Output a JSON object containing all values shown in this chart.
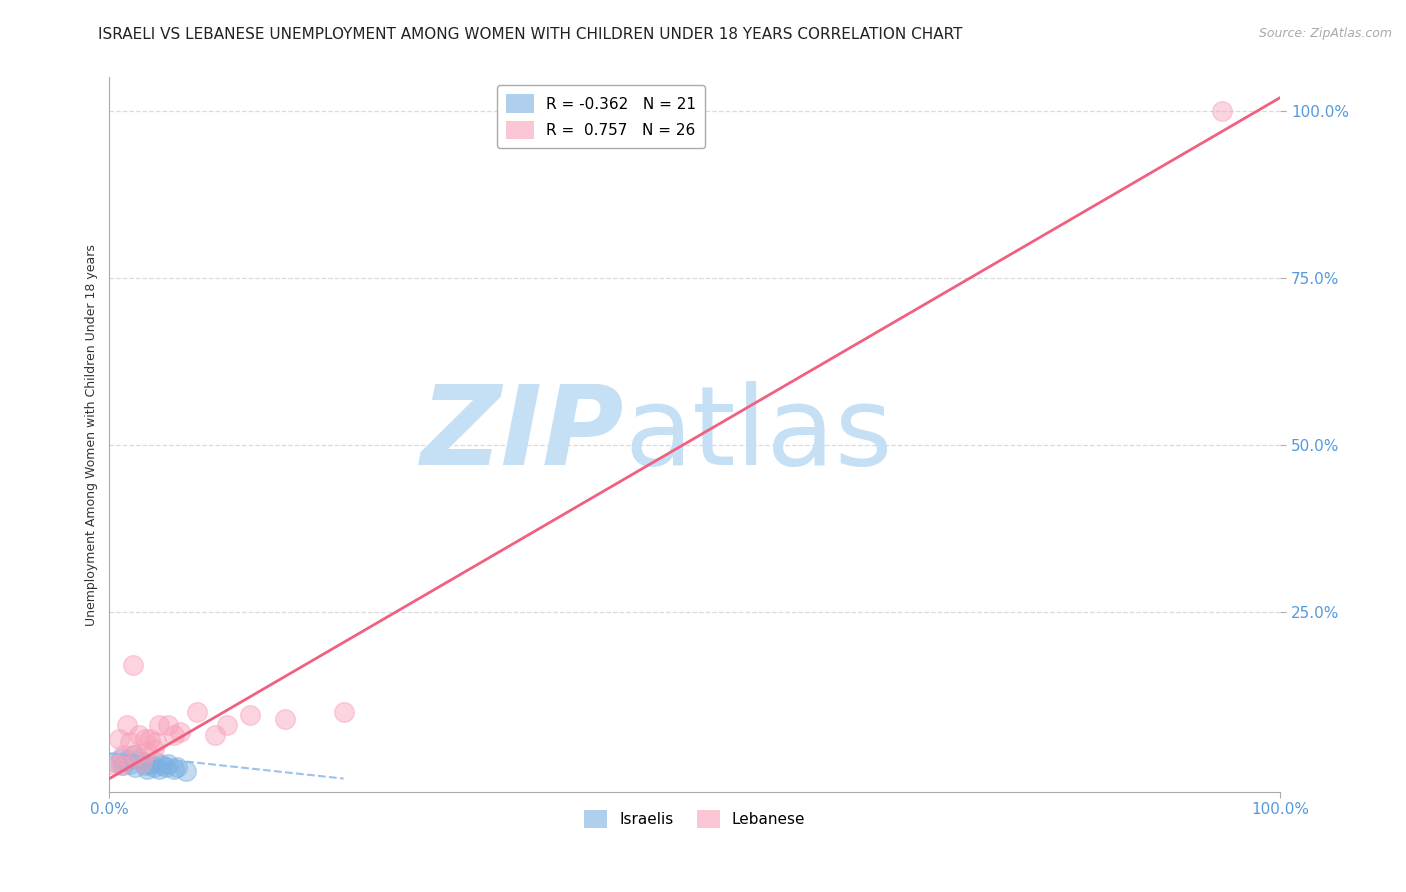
{
  "title": "ISRAELI VS LEBANESE UNEMPLOYMENT AMONG WOMEN WITH CHILDREN UNDER 18 YEARS CORRELATION CHART",
  "source": "Source: ZipAtlas.com",
  "ylabel": "Unemployment Among Women with Children Under 18 years",
  "xlim": [
    0,
    1
  ],
  "ylim": [
    -0.02,
    1.05
  ],
  "xticks": [
    0.0,
    1.0
  ],
  "yticks": [
    0.25,
    0.5,
    0.75,
    1.0
  ],
  "xticklabels": [
    "0.0%",
    "100.0%"
  ],
  "yticklabels": [
    "25.0%",
    "50.0%",
    "75.0%",
    "100.0%"
  ],
  "israeli_R": -0.362,
  "israeli_N": 21,
  "lebanese_R": 0.757,
  "lebanese_N": 26,
  "israeli_color": "#7ab0e0",
  "lebanese_color": "#f8a0b8",
  "israeli_trend_color": "#8ab8e8",
  "lebanese_trend_color": "#f06080",
  "background_color": "#ffffff",
  "grid_color": "#d8d8d8",
  "watermark_zip": "ZIP",
  "watermark_atlas": "atlas",
  "watermark_color": "#c5dff5",
  "israeli_points": [
    [
      0.005,
      0.025
    ],
    [
      0.01,
      0.03
    ],
    [
      0.012,
      0.02
    ],
    [
      0.015,
      0.028
    ],
    [
      0.018,
      0.022
    ],
    [
      0.02,
      0.035
    ],
    [
      0.022,
      0.018
    ],
    [
      0.025,
      0.03
    ],
    [
      0.028,
      0.025
    ],
    [
      0.03,
      0.02
    ],
    [
      0.032,
      0.015
    ],
    [
      0.035,
      0.022
    ],
    [
      0.038,
      0.018
    ],
    [
      0.04,
      0.025
    ],
    [
      0.042,
      0.015
    ],
    [
      0.045,
      0.02
    ],
    [
      0.048,
      0.018
    ],
    [
      0.05,
      0.022
    ],
    [
      0.055,
      0.015
    ],
    [
      0.058,
      0.018
    ],
    [
      0.065,
      0.012
    ]
  ],
  "lebanese_points": [
    [
      0.005,
      0.02
    ],
    [
      0.008,
      0.06
    ],
    [
      0.01,
      0.02
    ],
    [
      0.012,
      0.035
    ],
    [
      0.015,
      0.08
    ],
    [
      0.018,
      0.055
    ],
    [
      0.02,
      0.17
    ],
    [
      0.022,
      0.035
    ],
    [
      0.025,
      0.065
    ],
    [
      0.028,
      0.025
    ],
    [
      0.03,
      0.06
    ],
    [
      0.032,
      0.04
    ],
    [
      0.035,
      0.06
    ],
    [
      0.038,
      0.045
    ],
    [
      0.04,
      0.055
    ],
    [
      0.042,
      0.08
    ],
    [
      0.05,
      0.08
    ],
    [
      0.055,
      0.065
    ],
    [
      0.06,
      0.07
    ],
    [
      0.075,
      0.1
    ],
    [
      0.09,
      0.065
    ],
    [
      0.1,
      0.08
    ],
    [
      0.12,
      0.095
    ],
    [
      0.15,
      0.09
    ],
    [
      0.2,
      0.1
    ],
    [
      0.95,
      1.0
    ]
  ],
  "title_fontsize": 11,
  "axis_label_fontsize": 9,
  "tick_fontsize": 11,
  "legend_fontsize": 11,
  "source_fontsize": 9,
  "marker_size": 200
}
